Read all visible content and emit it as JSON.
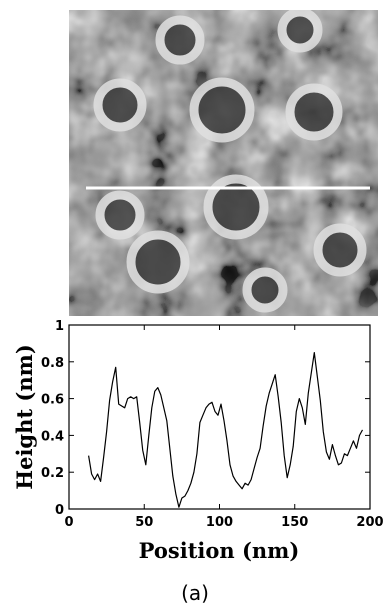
{
  "caption": "(a)",
  "afm_image": {
    "type": "grayscale-micrograph",
    "scan_line": true,
    "scan_line_color": "#ffffff"
  },
  "chart_data": {
    "type": "line",
    "title": "",
    "xlabel": "Position (nm)",
    "ylabel": "Height (nm)",
    "xlim": [
      0,
      200
    ],
    "ylim": [
      0,
      1
    ],
    "xticks": [
      0,
      50,
      100,
      150,
      200
    ],
    "yticks": [
      0,
      0.2,
      0.4,
      0.6,
      0.8,
      1
    ],
    "xtick_labels": [
      "0",
      "50",
      "100",
      "150",
      "200"
    ],
    "ytick_labels": [
      "0",
      "0.2",
      "0.4",
      "0.6",
      "0.8",
      "1"
    ],
    "grid": false,
    "line_color": "#000000",
    "series": [
      {
        "x": [
          13,
          15,
          17,
          19,
          21,
          23,
          25,
          27,
          29,
          31,
          33,
          35,
          37,
          39,
          41,
          43,
          45,
          47,
          49,
          51,
          53,
          55,
          57,
          59,
          61,
          63,
          65,
          67,
          69,
          71,
          73,
          75,
          77,
          79,
          81,
          83,
          85,
          87,
          89,
          91,
          93,
          95,
          97,
          99,
          101,
          103,
          105,
          107,
          109,
          111,
          113,
          115,
          117,
          119,
          121,
          123,
          125,
          127,
          129,
          131,
          133,
          135,
          137,
          139,
          141,
          143,
          145,
          147,
          149,
          151,
          153,
          155,
          157,
          159,
          161,
          163,
          165,
          167,
          169,
          171,
          173,
          175,
          177,
          179,
          181,
          183,
          185,
          187,
          189,
          191,
          193,
          195
        ],
        "y": [
          0.29,
          0.19,
          0.16,
          0.19,
          0.15,
          0.28,
          0.42,
          0.59,
          0.69,
          0.77,
          0.57,
          0.56,
          0.55,
          0.6,
          0.61,
          0.6,
          0.61,
          0.47,
          0.32,
          0.24,
          0.4,
          0.55,
          0.64,
          0.66,
          0.62,
          0.55,
          0.48,
          0.33,
          0.18,
          0.08,
          0.01,
          0.06,
          0.07,
          0.1,
          0.14,
          0.2,
          0.3,
          0.47,
          0.51,
          0.55,
          0.57,
          0.58,
          0.53,
          0.51,
          0.57,
          0.48,
          0.37,
          0.24,
          0.18,
          0.15,
          0.13,
          0.11,
          0.14,
          0.13,
          0.16,
          0.22,
          0.28,
          0.33,
          0.45,
          0.56,
          0.63,
          0.68,
          0.73,
          0.61,
          0.47,
          0.29,
          0.17,
          0.24,
          0.34,
          0.53,
          0.6,
          0.55,
          0.46,
          0.63,
          0.74,
          0.85,
          0.72,
          0.59,
          0.42,
          0.31,
          0.27,
          0.35,
          0.29,
          0.24,
          0.25,
          0.3,
          0.29,
          0.33,
          0.37,
          0.33,
          0.4,
          0.43
        ]
      }
    ]
  }
}
